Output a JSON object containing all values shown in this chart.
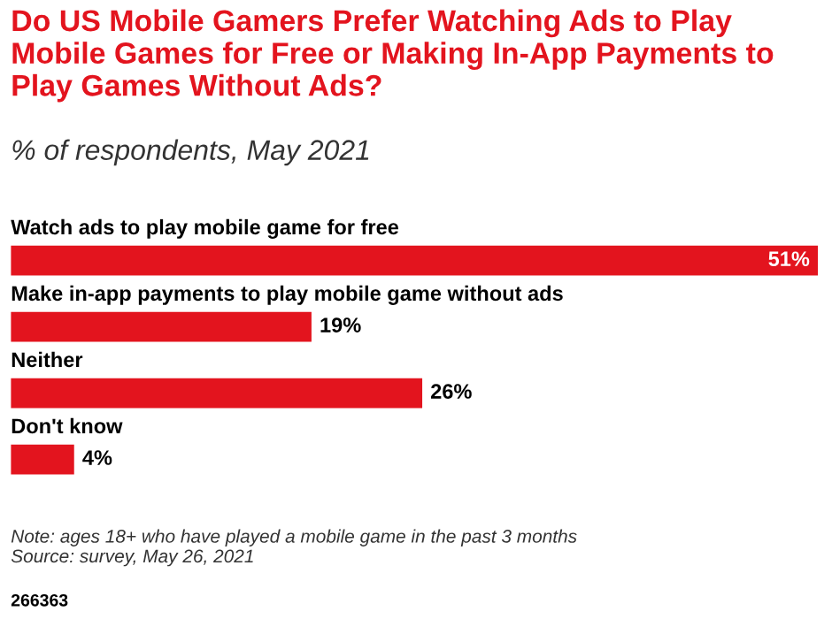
{
  "chart_data": {
    "type": "bar",
    "orientation": "horizontal",
    "title": "Do US Mobile Gamers Prefer Watching Ads to Play Mobile Games for Free or Making In-App Payments to Play Games Without Ads?",
    "subtitle": "% of respondents, May 2021",
    "categories": [
      "Watch ads to play mobile game for free",
      "Make in-app payments to play mobile game without ads",
      "Neither",
      "Don't know"
    ],
    "values": [
      51,
      19,
      26,
      4
    ],
    "value_labels": [
      "51%",
      "19%",
      "26%",
      "4%"
    ],
    "color": "#e3141e",
    "annotations": [
      "Note: ages 18+ who have played a mobile game in the past 3 months\nSource: survey, May 26, 2021",
      "266363"
    ]
  }
}
